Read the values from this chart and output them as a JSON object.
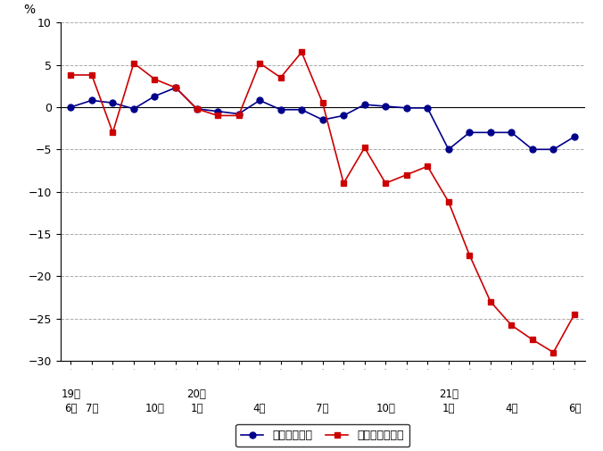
{
  "ylabel": "%",
  "ylim": [
    -30,
    10
  ],
  "yticks": [
    10,
    5,
    0,
    -5,
    -10,
    -15,
    -20,
    -25,
    -30
  ],
  "blue_line": {
    "label": "総実労働時間",
    "color": "#00008B",
    "marker": "o",
    "markersize": 5,
    "values": [
      0.0,
      0.8,
      0.5,
      -0.2,
      1.3,
      2.3,
      -0.2,
      -0.5,
      -0.8,
      0.8,
      -0.3,
      -0.3,
      -1.5,
      -1.0,
      0.3,
      0.1,
      -0.1,
      -0.1,
      -5.0,
      -3.0,
      -3.0,
      -3.0,
      -5.0,
      -5.0,
      -3.5
    ]
  },
  "red_line": {
    "label": "所定外労働時間",
    "color": "#CC0000",
    "marker": "s",
    "markersize": 5,
    "values": [
      3.8,
      3.8,
      -3.0,
      5.2,
      3.3,
      2.3,
      -0.2,
      -1.0,
      -1.0,
      5.2,
      3.5,
      6.5,
      0.5,
      -9.0,
      -4.8,
      -9.0,
      -8.0,
      -7.0,
      -11.2,
      -17.5,
      -23.0,
      -25.8,
      -27.5,
      -29.0,
      -24.5
    ]
  },
  "background_color": "#ffffff",
  "grid_color": "#aaaaaa",
  "label_info": [
    [
      0,
      "19年",
      "6月"
    ],
    [
      1,
      "",
      "7月"
    ],
    [
      4,
      "",
      "10月"
    ],
    [
      6,
      "20年",
      "1月"
    ],
    [
      9,
      "",
      "4月"
    ],
    [
      12,
      "",
      "7月"
    ],
    [
      15,
      "",
      "10月"
    ],
    [
      18,
      "21年",
      "1月"
    ],
    [
      21,
      "",
      "4月"
    ],
    [
      24,
      "",
      "6月"
    ]
  ]
}
